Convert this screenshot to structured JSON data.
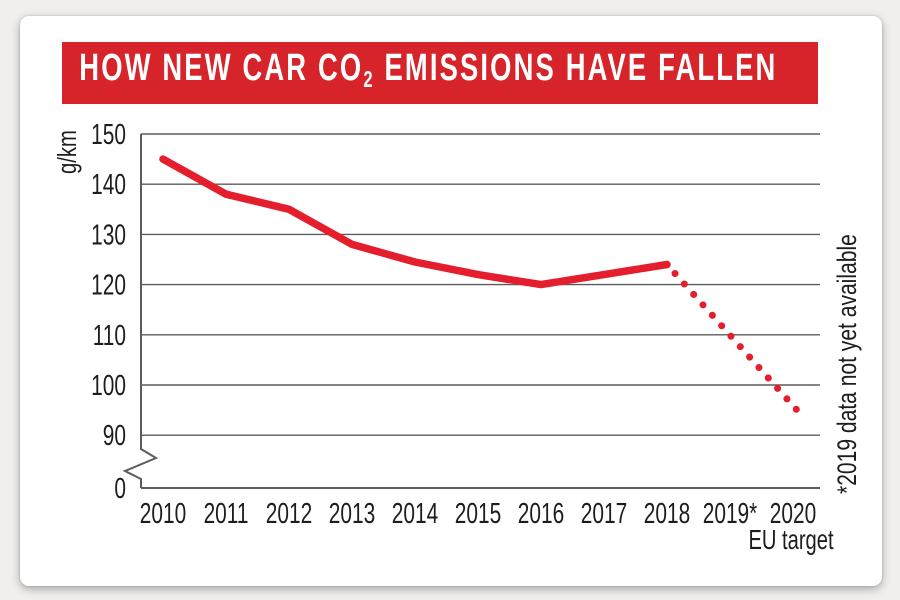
{
  "page": {
    "background": "#f0efed",
    "card_color": "#ffffff"
  },
  "banner": {
    "color": "#d7232a",
    "title_pre": "HOW NEW CAR CO",
    "title_sub": "2",
    "title_post": " EMISSIONS HAVE FALLEN"
  },
  "chart_data": {
    "type": "line",
    "title": "HOW NEW CAR CO2 EMISSIONS HAVE FALLEN",
    "xlabel": "",
    "ylabel": "g/km",
    "x_categories": [
      "2010",
      "2011",
      "2012",
      "2013",
      "2014",
      "2015",
      "2016",
      "2017",
      "2018",
      "2019*",
      "2020"
    ],
    "x_footnote": "EU target",
    "yticks": [
      150,
      140,
      130,
      120,
      110,
      100,
      90,
      0
    ],
    "ylim": [
      0,
      150
    ],
    "axis_break": "y-axis break between 0 and 90",
    "grid": true,
    "legend": "none",
    "annotation": "*2019 data not yet available",
    "grid_color": "#5c5c5c",
    "series": [
      {
        "name": "average-new-car-co2-actual",
        "style": "solid",
        "color": "#e41e2c",
        "categories": [
          "2010",
          "2011",
          "2012",
          "2013",
          "2014",
          "2015",
          "2016",
          "2017",
          "2018"
        ],
        "values": [
          145,
          138,
          135,
          128,
          124.5,
          122,
          120,
          122,
          124
        ]
      },
      {
        "name": "projection-to-eu-target",
        "style": "dotted",
        "color": "#e41e2c",
        "points": [
          {
            "category": "2018",
            "value": 124
          },
          {
            "category": "2020",
            "value": 95
          }
        ]
      }
    ]
  }
}
